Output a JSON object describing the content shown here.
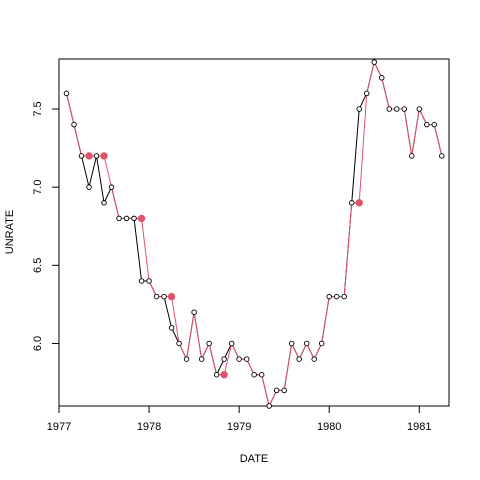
{
  "chart_data": {
    "type": "line",
    "title": "",
    "xlabel": "DATE",
    "ylabel": "UNRATE",
    "xlim": [
      1977.0,
      1981.33
    ],
    "ylim": [
      5.6,
      7.82
    ],
    "x_ticks": [
      1977,
      1978,
      1979,
      1980,
      1981
    ],
    "x_tick_labels": [
      "1977",
      "1978",
      "1979",
      "1980",
      "1981"
    ],
    "y_ticks": [
      6.0,
      6.5,
      7.0,
      7.5
    ],
    "y_tick_labels": [
      "6.0",
      "6.5",
      "7.0",
      "7.5"
    ],
    "grid": false,
    "legend": "none",
    "series": [
      {
        "style": "black line with open circles",
        "color": "#000000",
        "x": [
          "1977-02",
          "1977-03",
          "1977-04",
          "1977-05",
          "1977-06",
          "1977-07",
          "1977-08",
          "1977-09",
          "1977-10",
          "1977-11",
          "1977-12",
          "1978-01",
          "1978-02",
          "1978-03",
          "1978-04",
          "1978-05",
          "1978-06",
          "1978-07",
          "1978-08",
          "1978-09",
          "1978-10",
          "1978-11",
          "1978-12",
          "1979-01",
          "1979-02",
          "1979-03",
          "1979-04",
          "1979-05",
          "1979-06",
          "1979-07",
          "1979-08",
          "1979-09",
          "1979-10",
          "1979-11",
          "1979-12",
          "1980-01",
          "1980-02",
          "1980-03",
          "1980-04",
          "1980-05",
          "1980-06",
          "1980-07",
          "1980-08",
          "1980-09",
          "1980-10",
          "1980-11",
          "1980-12",
          "1981-01",
          "1981-02",
          "1981-03",
          "1981-04"
        ],
        "values": [
          7.6,
          7.4,
          7.2,
          7.0,
          7.2,
          6.9,
          7.0,
          6.8,
          6.8,
          6.8,
          6.4,
          6.4,
          6.3,
          6.3,
          6.1,
          6.0,
          5.9,
          6.2,
          5.9,
          6.0,
          5.8,
          5.9,
          6.0,
          5.9,
          5.9,
          5.8,
          5.8,
          5.6,
          5.7,
          5.7,
          6.0,
          5.9,
          6.0,
          5.9,
          6.0,
          6.3,
          6.3,
          6.3,
          6.9,
          7.5,
          7.6,
          7.8,
          7.7,
          7.5,
          7.5,
          7.5,
          7.2,
          7.5,
          7.4,
          7.4,
          7.2
        ]
      },
      {
        "style": "red line with filled markers at adjusted points",
        "color": "#DF536B",
        "x": [
          "1977-02",
          "1977-03",
          "1977-04",
          "1977-05",
          "1977-06",
          "1977-07",
          "1977-08",
          "1977-09",
          "1977-10",
          "1977-11",
          "1977-12",
          "1978-01",
          "1978-02",
          "1978-03",
          "1978-04",
          "1978-05",
          "1978-06",
          "1978-07",
          "1978-08",
          "1978-09",
          "1978-10",
          "1978-11",
          "1978-12",
          "1979-01",
          "1979-02",
          "1979-03",
          "1979-04",
          "1979-05",
          "1979-06",
          "1979-07",
          "1979-08",
          "1979-09",
          "1979-10",
          "1979-11",
          "1979-12",
          "1980-01",
          "1980-02",
          "1980-03",
          "1980-04",
          "1980-05",
          "1980-06",
          "1980-07",
          "1980-08",
          "1980-09",
          "1980-10",
          "1980-11",
          "1980-12",
          "1981-01",
          "1981-02",
          "1981-03",
          "1981-04"
        ],
        "values": [
          7.6,
          7.4,
          7.2,
          7.2,
          7.2,
          7.2,
          7.0,
          6.8,
          6.8,
          6.8,
          6.8,
          6.4,
          6.3,
          6.3,
          6.3,
          6.0,
          5.9,
          6.2,
          5.9,
          6.0,
          5.8,
          5.8,
          6.0,
          5.9,
          5.9,
          5.8,
          5.8,
          5.6,
          5.7,
          5.7,
          6.0,
          5.9,
          6.0,
          5.9,
          6.0,
          6.3,
          6.3,
          6.3,
          6.9,
          6.9,
          7.6,
          7.8,
          7.7,
          7.5,
          7.5,
          7.5,
          7.2,
          7.5,
          7.4,
          7.4,
          7.2
        ],
        "highlighted_x": [
          "1977-05",
          "1977-07",
          "1977-12",
          "1978-04",
          "1978-11",
          "1980-05"
        ],
        "highlighted_values": [
          7.2,
          7.2,
          6.8,
          6.3,
          5.8,
          6.9
        ]
      }
    ]
  }
}
